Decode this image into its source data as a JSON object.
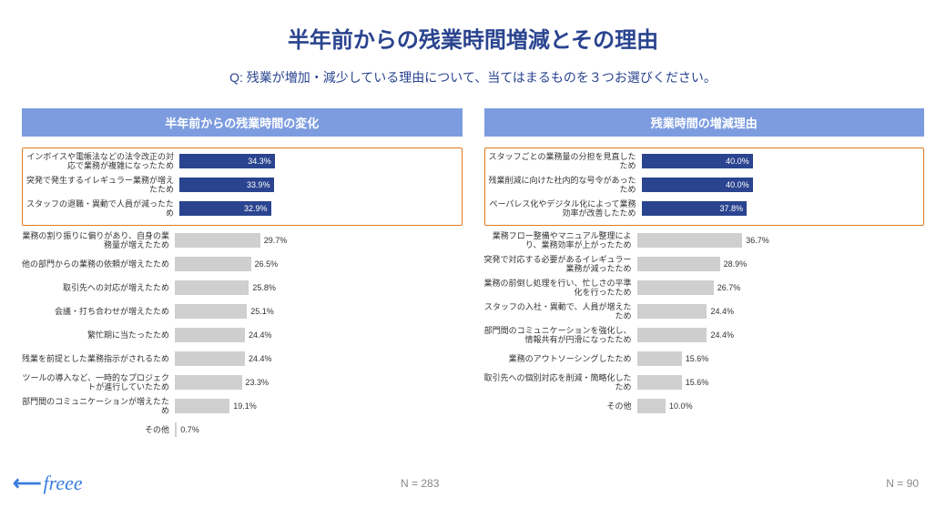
{
  "title": "半年前からの残業時間増減とその理由",
  "subtitle": "Q: 残業が増加・減少している理由について、当てはまるものを３つお選びください。",
  "logo": {
    "text": "freee"
  },
  "colors": {
    "header_bg": "#7d9cdf",
    "header_text": "#ffffff",
    "highlight_border": "#e07a1f",
    "bar_highlight": "#2a448f",
    "bar_normal": "#cfcfcf",
    "title_color": "#2a448f",
    "value_text_on_bar": "#ffffff",
    "value_text_off_bar": "#333333",
    "background": "#ffffff"
  },
  "chart_left": {
    "header": "半年前からの残業時間の変化",
    "type": "bar",
    "xlim": [
      0,
      100
    ],
    "label_fontsize": 9,
    "value_fontsize": 9,
    "highlight_count": 3,
    "n_label": "N = 283",
    "items": [
      {
        "label": "インボイスや電帳法などの法令改正の対応で業務が複雑になったため",
        "value": 34.3
      },
      {
        "label": "突発で発生するイレギュラー業務が増えたため",
        "value": 33.9
      },
      {
        "label": "スタッフの退職・異動で人員が減ったため",
        "value": 32.9
      },
      {
        "label": "業務の割り振りに偏りがあり、自身の業務量が増えたため",
        "value": 29.7
      },
      {
        "label": "他の部門からの業務の依頼が増えたため",
        "value": 26.5
      },
      {
        "label": "取引先への対応が増えたため",
        "value": 25.8
      },
      {
        "label": "会議・打ち合わせが増えたため",
        "value": 25.1
      },
      {
        "label": "繁忙期に当たったため",
        "value": 24.4
      },
      {
        "label": "残業を前提とした業務指示がされるため",
        "value": 24.4
      },
      {
        "label": "ツールの導入など、一時的なプロジェクトが進行していたため",
        "value": 23.3
      },
      {
        "label": "部門間のコミュニケーションが増えたため",
        "value": 19.1
      },
      {
        "label": "その他",
        "value": 0.7
      }
    ]
  },
  "chart_right": {
    "header": "残業時間の増減理由",
    "type": "bar",
    "xlim": [
      0,
      100
    ],
    "label_fontsize": 9,
    "value_fontsize": 9,
    "highlight_count": 3,
    "n_label": "N = 90",
    "items": [
      {
        "label": "スタッフごとの業務量の分担を見直したため",
        "value": 40.0
      },
      {
        "label": "残業削減に向けた社内的な号令があったため",
        "value": 40.0
      },
      {
        "label": "ペーパレス化やデジタル化によって業務効率が改善したため",
        "value": 37.8
      },
      {
        "label": "業務フロー整備やマニュアル整理により、業務効率が上がったため",
        "value": 36.7
      },
      {
        "label": "突発で対応する必要があるイレギュラー業務が減ったため",
        "value": 28.9
      },
      {
        "label": "業務の前倒し処理を行い、忙しさの平準化を行ったため",
        "value": 26.7
      },
      {
        "label": "スタッフの入社・異動で、人員が増えたため",
        "value": 24.4
      },
      {
        "label": "部門間のコミュニケーションを強化し、情報共有が円滑になったため",
        "value": 24.4
      },
      {
        "label": "業務のアウトソーシングしたため",
        "value": 15.6
      },
      {
        "label": "取引先への個別対応を削減・簡略化したため",
        "value": 15.6
      },
      {
        "label": "その他",
        "value": 10.0
      }
    ]
  }
}
